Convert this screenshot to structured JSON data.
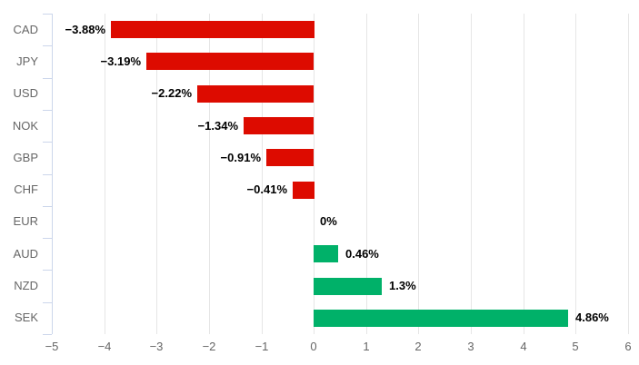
{
  "chart_data": {
    "type": "bar",
    "orientation": "horizontal",
    "title": "",
    "xlabel": "",
    "ylabel": "",
    "categories": [
      "CAD",
      "JPY",
      "USD",
      "NOK",
      "GBP",
      "CHF",
      "EUR",
      "AUD",
      "NZD",
      "SEK"
    ],
    "values": [
      -3.88,
      -3.19,
      -2.22,
      -1.34,
      -0.91,
      -0.41,
      0,
      0.46,
      1.3,
      4.86
    ],
    "value_labels": [
      "−3.88%",
      "−3.19%",
      "−2.22%",
      "−1.34%",
      "−0.91%",
      "−0.41%",
      "0%",
      "0.46%",
      "1.3%",
      "4.86%"
    ],
    "x_ticks": [
      -5,
      -4,
      -3,
      -2,
      -1,
      0,
      1,
      2,
      3,
      4,
      5,
      6
    ],
    "x_tick_labels": [
      "−5",
      "−4",
      "−3",
      "−2",
      "−1",
      "0",
      "1",
      "2",
      "3",
      "4",
      "5",
      "6"
    ],
    "xlim": [
      -5,
      6
    ],
    "grid": true,
    "legend": "none",
    "colors": {
      "negative_bar": "#dd0b00",
      "positive_bar": "#00b169",
      "gridline": "#e6e6e6",
      "axis_line": "#ccd6eb",
      "axis_label": "#666666",
      "value_label": "#000000",
      "background": "#ffffff"
    }
  }
}
